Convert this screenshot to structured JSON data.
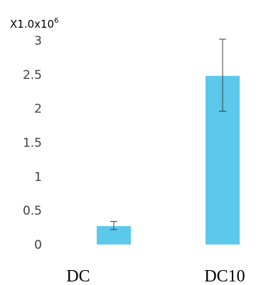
{
  "chart_data": {
    "type": "bar",
    "title": "",
    "xlabel": "",
    "ylabel": "",
    "multiplier": {
      "base": "X1.0x10",
      "exponent": "6"
    },
    "categories": [
      "DC",
      "DC10"
    ],
    "values": [
      0.27,
      2.48
    ],
    "error_low": [
      0.22,
      1.96
    ],
    "error_high": [
      0.34,
      3.02
    ],
    "ylim": [
      0,
      3
    ],
    "yticks": [
      "0",
      "0.5",
      "1",
      "1.5",
      "2",
      "2.5",
      "3"
    ],
    "ytick_values": [
      0,
      0.5,
      1,
      1.5,
      2,
      2.5,
      3
    ],
    "bar_color": "#5bc8ec",
    "error_color": "#404040",
    "grid": false,
    "legend": "none"
  }
}
